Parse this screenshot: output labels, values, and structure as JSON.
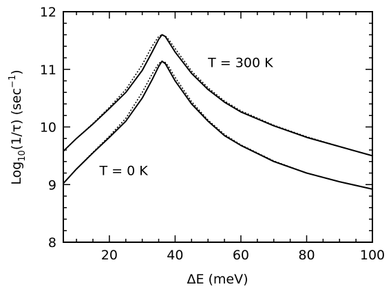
{
  "chart_data": {
    "type": "line",
    "title": "",
    "xlabel": "ΔE (meV)",
    "ylabel": "Log10(1/τ) (sec^-1)",
    "ylabel_parts": {
      "pre": "Log",
      "sub": "10",
      "mid": "(1/τ) (sec",
      "sup": "−1",
      "post": ")"
    },
    "xlim": [
      6,
      100
    ],
    "ylim": [
      8,
      12
    ],
    "x_ticks": [
      20,
      40,
      60,
      80,
      100
    ],
    "y_ticks": [
      8,
      9,
      10,
      11,
      12
    ],
    "x_tick_labels": [
      "20",
      "40",
      "60",
      "80",
      "100"
    ],
    "y_tick_labels": [
      "8",
      "9",
      "10",
      "11",
      "12"
    ],
    "grid": false,
    "annotations": [
      {
        "text": "T = 300 K",
        "x": 50,
        "y": 11.12
      },
      {
        "text": "T = 0 K",
        "x": 17,
        "y": 9.25
      }
    ],
    "series": [
      {
        "style": "solid",
        "x": [
          6,
          10,
          15,
          20,
          25,
          30,
          33,
          35,
          36,
          37,
          38,
          40,
          45,
          50,
          55,
          60,
          70,
          80,
          90,
          100
        ],
        "y": [
          9.58,
          9.8,
          10.05,
          10.32,
          10.6,
          10.98,
          11.3,
          11.52,
          11.6,
          11.57,
          11.48,
          11.3,
          10.93,
          10.65,
          10.43,
          10.26,
          10.02,
          9.82,
          9.66,
          9.5
        ]
      },
      {
        "style": "dotted",
        "x": [
          6,
          10,
          15,
          20,
          25,
          30,
          33,
          35,
          36,
          37,
          38,
          40,
          45,
          50,
          55,
          60,
          70,
          80,
          90,
          100
        ],
        "y": [
          9.58,
          9.8,
          10.06,
          10.34,
          10.65,
          11.08,
          11.4,
          11.57,
          11.6,
          11.58,
          11.52,
          11.36,
          10.97,
          10.68,
          10.45,
          10.28,
          10.03,
          9.83,
          9.66,
          9.5
        ]
      },
      {
        "style": "solid",
        "x": [
          6,
          10,
          15,
          20,
          25,
          30,
          33,
          35,
          36,
          37,
          38,
          40,
          45,
          50,
          55,
          60,
          70,
          80,
          90,
          100
        ],
        "y": [
          9.02,
          9.27,
          9.55,
          9.82,
          10.1,
          10.5,
          10.82,
          11.05,
          11.14,
          11.1,
          11.0,
          10.8,
          10.4,
          10.1,
          9.85,
          9.68,
          9.4,
          9.2,
          9.05,
          8.92
        ]
      },
      {
        "style": "dotted",
        "x": [
          6,
          10,
          15,
          20,
          25,
          30,
          33,
          35,
          36,
          37,
          38,
          40,
          45,
          50,
          55,
          60,
          70,
          80,
          90,
          100
        ],
        "y": [
          9.02,
          9.27,
          9.56,
          9.84,
          10.15,
          10.6,
          10.92,
          11.1,
          11.14,
          11.12,
          11.05,
          10.86,
          10.44,
          10.12,
          9.87,
          9.69,
          9.41,
          9.2,
          9.05,
          8.92
        ]
      }
    ]
  }
}
